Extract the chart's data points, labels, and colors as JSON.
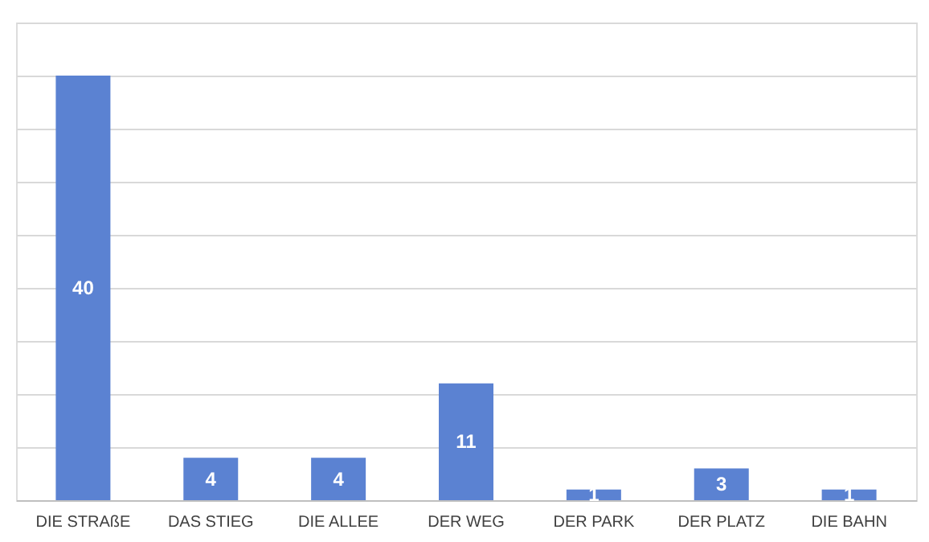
{
  "chart_data": {
    "type": "bar",
    "categories": [
      "DIE STRAßE",
      "DAS STIEG",
      "DIE ALLEE",
      "DER WEG",
      "DER PARK",
      "DER PLATZ",
      "DIE BAHN"
    ],
    "values": [
      40,
      4,
      4,
      11,
      1,
      3,
      1
    ],
    "color": "#5b82d2",
    "ylim": [
      0,
      45
    ],
    "yticks": [
      {
        "value": 0,
        "label": null
      },
      {
        "value": 5,
        "label": null
      },
      {
        "value": 10,
        "label": null
      },
      {
        "value": 15,
        "label": null
      },
      {
        "value": 20,
        "label": null
      },
      {
        "value": 25,
        "label": null
      },
      {
        "value": 30,
        "label": null
      },
      {
        "value": 35,
        "label": null
      },
      {
        "value": 40,
        "label": null
      },
      {
        "value": 45,
        "label": null
      }
    ],
    "tick_labels": "x",
    "grid": "y",
    "data_labels": true
  }
}
